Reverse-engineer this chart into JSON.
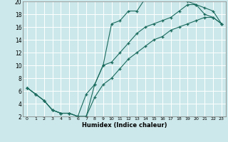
{
  "xlabel": "Humidex (Indice chaleur)",
  "bg_color": "#cde8ea",
  "grid_color": "#ffffff",
  "line_color": "#1a6b5e",
  "xlim": [
    -0.5,
    23.5
  ],
  "ylim": [
    2,
    20
  ],
  "xticks": [
    0,
    1,
    2,
    3,
    4,
    5,
    6,
    7,
    8,
    9,
    10,
    11,
    12,
    13,
    14,
    15,
    16,
    17,
    18,
    19,
    20,
    21,
    22,
    23
  ],
  "yticks": [
    2,
    4,
    6,
    8,
    10,
    12,
    14,
    16,
    18,
    20
  ],
  "line1_x": [
    0,
    1,
    2,
    3,
    4,
    5,
    6,
    7,
    8,
    9,
    10,
    11,
    12,
    13,
    14,
    15,
    16,
    17,
    18,
    19,
    20,
    21,
    22,
    23
  ],
  "line1_y": [
    6.5,
    5.5,
    4.5,
    3.0,
    2.5,
    2.5,
    2.0,
    2.0,
    7.0,
    10.0,
    16.5,
    17.0,
    18.5,
    18.5,
    20.5,
    20.5,
    20.5,
    20.5,
    20.5,
    20.0,
    19.5,
    18.0,
    17.5,
    16.5
  ],
  "line2_x": [
    0,
    1,
    2,
    3,
    4,
    5,
    6,
    7,
    8,
    9,
    10,
    11,
    12,
    13,
    14,
    15,
    16,
    17,
    18,
    19,
    20,
    21,
    22,
    23
  ],
  "line2_y": [
    6.5,
    5.5,
    4.5,
    3.0,
    2.5,
    2.5,
    2.0,
    5.5,
    7.0,
    10.0,
    10.5,
    12.0,
    13.5,
    15.0,
    16.0,
    16.5,
    17.0,
    17.5,
    18.5,
    19.5,
    19.5,
    19.0,
    18.5,
    16.5
  ],
  "line3_x": [
    0,
    1,
    2,
    3,
    4,
    5,
    6,
    7,
    8,
    9,
    10,
    11,
    12,
    13,
    14,
    15,
    16,
    17,
    18,
    19,
    20,
    21,
    22,
    23
  ],
  "line3_y": [
    6.5,
    5.5,
    4.5,
    3.0,
    2.5,
    2.5,
    2.0,
    2.0,
    5.0,
    7.0,
    8.0,
    9.5,
    11.0,
    12.0,
    13.0,
    14.0,
    14.5,
    15.5,
    16.0,
    16.5,
    17.0,
    17.5,
    17.5,
    16.5
  ]
}
